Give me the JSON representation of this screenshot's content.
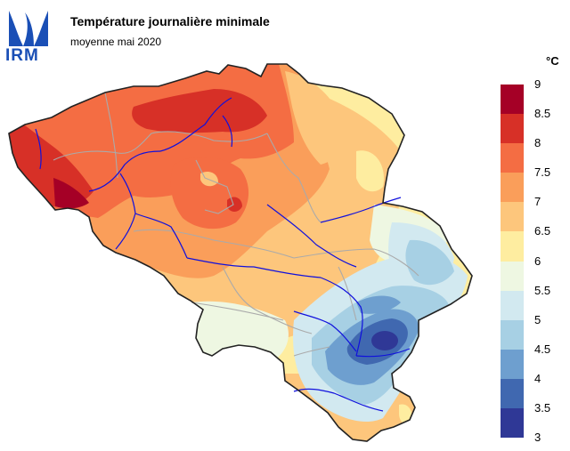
{
  "header": {
    "logo_text": "IRM",
    "title": "Température journalière minimale",
    "subtitle": "moyenne mai 2020"
  },
  "legend": {
    "unit": "°C",
    "ticks": [
      "9",
      "8.5",
      "8",
      "7.5",
      "7",
      "6.5",
      "6",
      "5.5",
      "5",
      "4.5",
      "4",
      "3.5",
      "3"
    ],
    "colors": [
      "#a50026",
      "#d73027",
      "#f46d43",
      "#fa9e5a",
      "#fdc67c",
      "#feeda0",
      "#eef7e2",
      "#d2e9f0",
      "#a7d0e4",
      "#6e9fcf",
      "#4068b0",
      "#2f3896"
    ]
  },
  "map": {
    "country": "Belgique",
    "colors": {
      "border": "#222222",
      "province_lines": "#aaaaaa",
      "rivers": "#1010dd"
    }
  }
}
